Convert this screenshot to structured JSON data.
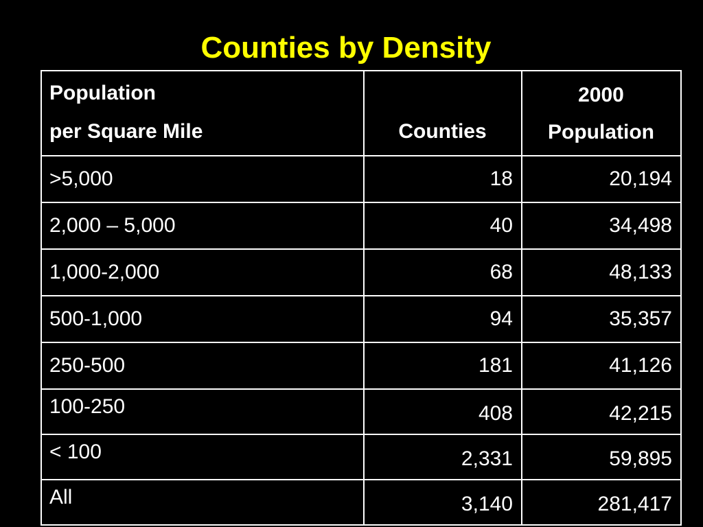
{
  "slide": {
    "title": "Counties by Density"
  },
  "table": {
    "headers": {
      "density_line1": "Population",
      "density_line2": "per Square Mile",
      "counties": "Counties",
      "population_line1": "2000",
      "population_line2": "Population"
    },
    "rows": [
      {
        "density": ">5,000",
        "counties": "18",
        "population": "20,194"
      },
      {
        "density": "2,000 – 5,000",
        "counties": "40",
        "population": "34,498"
      },
      {
        "density": "1,000-2,000",
        "counties": "68",
        "population": "48,133"
      },
      {
        "density": "500-1,000",
        "counties": "94",
        "population": "35,357"
      },
      {
        "density": "250-500",
        "counties": "181",
        "population": "41,126"
      },
      {
        "density": "100-250",
        "counties": "408",
        "population": "42,215"
      },
      {
        "density": "< 100",
        "counties": "2,331",
        "population": "59,895"
      },
      {
        "density": "All",
        "counties": "3,140",
        "population": "281,417"
      }
    ]
  },
  "colors": {
    "background": "#000000",
    "title": "#FFFF00",
    "text": "#FFFFFF",
    "grid": "#FFFFFF"
  }
}
